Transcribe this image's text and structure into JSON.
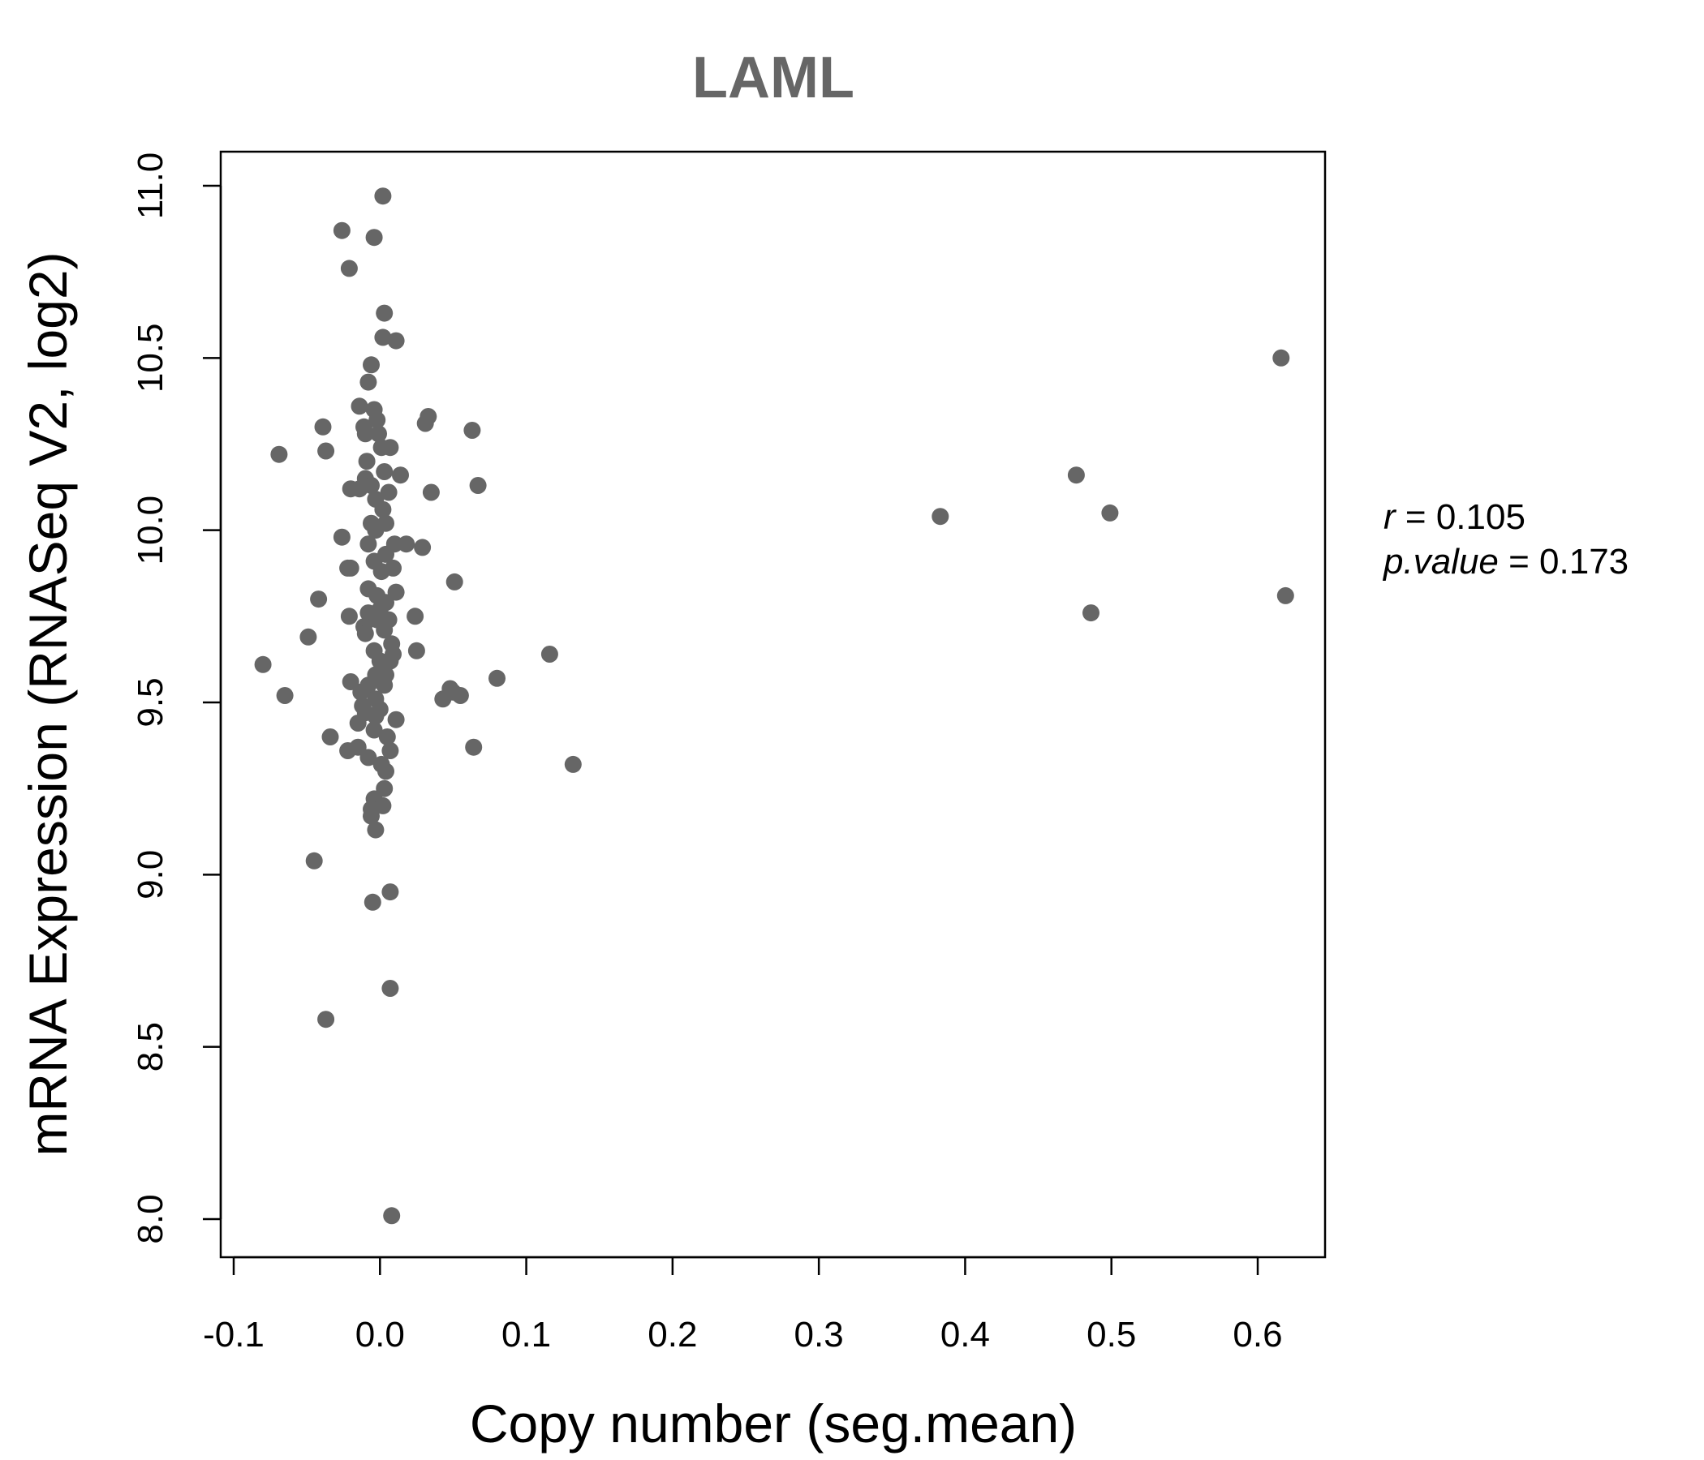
{
  "chart_data": {
    "type": "scatter",
    "title": "LAML",
    "xlabel": "Copy number (seg.mean)",
    "ylabel": "mRNA Expression (RNASeq V2, log2)",
    "xlim": [
      -0.1,
      0.65
    ],
    "ylim": [
      7.9,
      11.1
    ],
    "x_ticks": [
      -0.1,
      0.0,
      0.1,
      0.2,
      0.3,
      0.4,
      0.5,
      0.6
    ],
    "x_tick_labels": [
      "-0.1",
      "0.0",
      "0.1",
      "0.2",
      "0.3",
      "0.4",
      "0.5",
      "0.6"
    ],
    "y_ticks": [
      8.0,
      8.5,
      9.0,
      9.5,
      10.0,
      10.5,
      11.0
    ],
    "y_tick_labels": [
      "8.0",
      "8.5",
      "9.0",
      "9.5",
      "10.0",
      "10.5",
      "11.0"
    ],
    "point_color": "#666666",
    "stats": {
      "r_symbol": "r",
      "r_value": "0.105",
      "p_symbol": "p.value",
      "p_value": "0.173"
    },
    "points": [
      [
        0.002,
        10.97
      ],
      [
        -0.026,
        10.87
      ],
      [
        -0.004,
        10.85
      ],
      [
        -0.021,
        10.76
      ],
      [
        0.003,
        10.63
      ],
      [
        0.002,
        10.56
      ],
      [
        0.011,
        10.55
      ],
      [
        -0.006,
        10.48
      ],
      [
        -0.008,
        10.43
      ],
      [
        -0.014,
        10.36
      ],
      [
        -0.004,
        10.35
      ],
      [
        -0.039,
        10.3
      ],
      [
        -0.011,
        10.3
      ],
      [
        -0.002,
        10.32
      ],
      [
        0.033,
        10.33
      ],
      [
        0.031,
        10.31
      ],
      [
        -0.01,
        10.28
      ],
      [
        -0.001,
        10.28
      ],
      [
        0.063,
        10.29
      ],
      [
        -0.069,
        10.22
      ],
      [
        -0.037,
        10.23
      ],
      [
        0.001,
        10.24
      ],
      [
        0.007,
        10.24
      ],
      [
        -0.009,
        10.2
      ],
      [
        0.003,
        10.17
      ],
      [
        0.014,
        10.16
      ],
      [
        -0.01,
        10.15
      ],
      [
        -0.02,
        10.12
      ],
      [
        -0.014,
        10.12
      ],
      [
        -0.006,
        10.13
      ],
      [
        0.006,
        10.11
      ],
      [
        0.067,
        10.13
      ],
      [
        0.035,
        10.11
      ],
      [
        -0.003,
        10.09
      ],
      [
        0.002,
        10.06
      ],
      [
        -0.006,
        10.02
      ],
      [
        0.004,
        10.02
      ],
      [
        -0.003,
        10.0
      ],
      [
        -0.026,
        9.98
      ],
      [
        -0.008,
        9.96
      ],
      [
        0.01,
        9.96
      ],
      [
        0.018,
        9.96
      ],
      [
        0.029,
        9.95
      ],
      [
        0.004,
        9.93
      ],
      [
        -0.004,
        9.91
      ],
      [
        -0.022,
        9.89
      ],
      [
        -0.02,
        9.89
      ],
      [
        0.009,
        9.89
      ],
      [
        0.001,
        9.88
      ],
      [
        0.051,
        9.85
      ],
      [
        -0.008,
        9.83
      ],
      [
        0.011,
        9.82
      ],
      [
        -0.002,
        9.81
      ],
      [
        -0.042,
        9.8
      ],
      [
        0.004,
        9.79
      ],
      [
        0.0,
        9.77
      ],
      [
        -0.008,
        9.76
      ],
      [
        -0.021,
        9.75
      ],
      [
        0.024,
        9.75
      ],
      [
        -0.002,
        9.74
      ],
      [
        0.006,
        9.74
      ],
      [
        -0.011,
        9.72
      ],
      [
        0.003,
        9.71
      ],
      [
        -0.01,
        9.7
      ],
      [
        -0.049,
        9.69
      ],
      [
        0.008,
        9.67
      ],
      [
        -0.004,
        9.65
      ],
      [
        0.025,
        9.65
      ],
      [
        0.116,
        9.64
      ],
      [
        0.009,
        9.64
      ],
      [
        0.0,
        9.62
      ],
      [
        0.007,
        9.62
      ],
      [
        -0.08,
        9.61
      ],
      [
        -0.003,
        9.58
      ],
      [
        0.004,
        9.58
      ],
      [
        0.08,
        9.57
      ],
      [
        -0.02,
        9.56
      ],
      [
        -0.008,
        9.55
      ],
      [
        0.003,
        9.55
      ],
      [
        0.048,
        9.54
      ],
      [
        -0.013,
        9.53
      ],
      [
        0.05,
        9.53
      ],
      [
        0.055,
        9.52
      ],
      [
        -0.065,
        9.52
      ],
      [
        -0.003,
        9.51
      ],
      [
        0.043,
        9.51
      ],
      [
        -0.012,
        9.49
      ],
      [
        0.0,
        9.48
      ],
      [
        -0.01,
        9.47
      ],
      [
        -0.003,
        9.46
      ],
      [
        0.011,
        9.45
      ],
      [
        -0.015,
        9.44
      ],
      [
        -0.004,
        9.42
      ],
      [
        0.005,
        9.4
      ],
      [
        -0.034,
        9.4
      ],
      [
        0.064,
        9.37
      ],
      [
        -0.015,
        9.37
      ],
      [
        -0.022,
        9.36
      ],
      [
        0.007,
        9.36
      ],
      [
        -0.008,
        9.34
      ],
      [
        0.132,
        9.32
      ],
      [
        0.001,
        9.32
      ],
      [
        0.004,
        9.3
      ],
      [
        0.003,
        9.25
      ],
      [
        -0.004,
        9.22
      ],
      [
        0.002,
        9.2
      ],
      [
        -0.006,
        9.19
      ],
      [
        -0.006,
        9.17
      ],
      [
        -0.003,
        9.13
      ],
      [
        -0.045,
        9.04
      ],
      [
        0.007,
        8.95
      ],
      [
        -0.005,
        8.92
      ],
      [
        0.007,
        8.67
      ],
      [
        -0.037,
        8.58
      ],
      [
        0.008,
        8.01
      ],
      [
        0.383,
        10.04
      ],
      [
        0.476,
        10.16
      ],
      [
        0.499,
        10.05
      ],
      [
        0.486,
        9.76
      ],
      [
        0.616,
        10.5
      ],
      [
        0.619,
        9.81
      ]
    ]
  }
}
